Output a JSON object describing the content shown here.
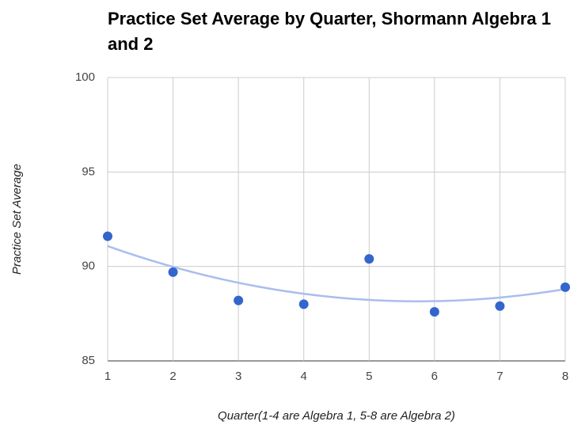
{
  "chart_data": {
    "type": "scatter",
    "title": "Practice Set Average by Quarter, Shormann Algebra 1 and 2",
    "x_label": "Quarter(1-4 are Algebra 1, 5-8 are Algebra 2)",
    "y_label": "Practice Set Average",
    "x": [
      1,
      2,
      3,
      4,
      5,
      6,
      7,
      8
    ],
    "values": [
      91.6,
      89.7,
      88.2,
      88.0,
      90.4,
      87.6,
      87.9,
      88.9
    ],
    "color": "#3366cc",
    "trendline": {
      "type": "polynomial",
      "degree": 2,
      "color": "#a9bdee"
    },
    "xlim": [
      1,
      8
    ],
    "xticks": [
      1,
      2,
      3,
      4,
      5,
      6,
      7,
      8
    ],
    "ylim": [
      85,
      100
    ],
    "yticks": [
      85,
      90,
      95,
      100
    ],
    "grid": true
  }
}
